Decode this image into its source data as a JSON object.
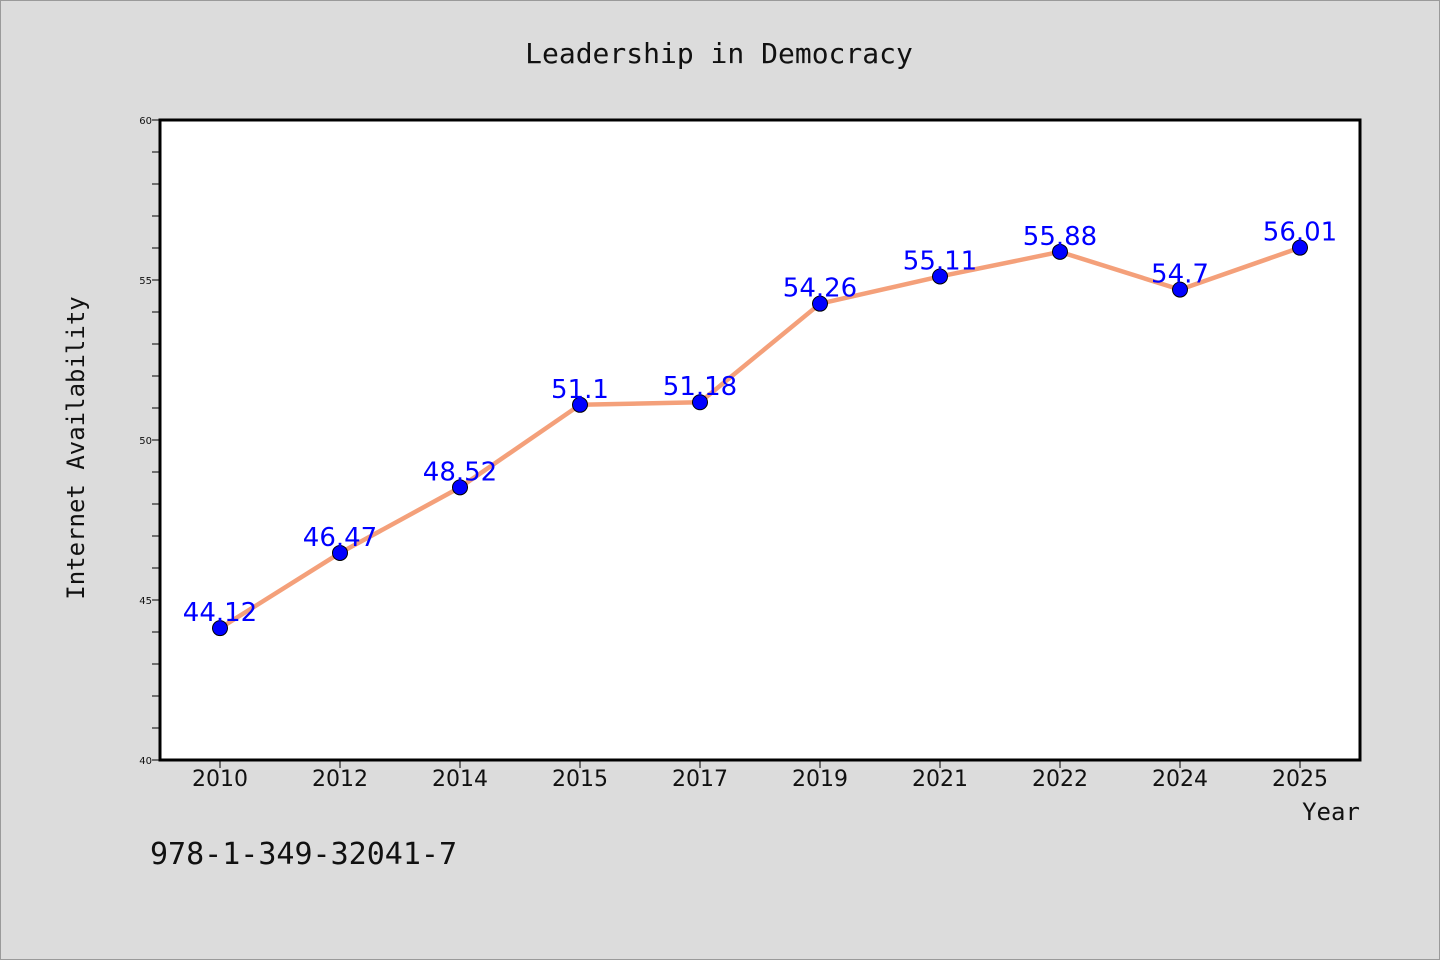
{
  "chart_data": {
    "type": "line",
    "title": "Leadership in Democracy",
    "xlabel": "Year",
    "ylabel": "Internet Availability",
    "categories": [
      "2010",
      "2012",
      "2014",
      "2015",
      "2017",
      "2019",
      "2021",
      "2022",
      "2024",
      "2025"
    ],
    "series": [
      {
        "values": [
          44.12,
          46.47,
          48.52,
          51.1,
          51.18,
          54.26,
          55.11,
          55.88,
          54.7,
          56.01
        ],
        "data_labels": [
          "44.12",
          "46.47",
          "48.52",
          "51.1",
          "51.18",
          "54.26",
          "55.11",
          "55.88",
          "54.7",
          "56.01"
        ],
        "line_color": "#f4a07a",
        "marker_color": "#0000ff"
      }
    ],
    "ylim": [
      40,
      60
    ],
    "yticks": [
      "40",
      "45",
      "50",
      "55",
      "60"
    ],
    "grid": false,
    "legend": "none"
  },
  "annotation": "978-1-349-32041-7",
  "colors": {
    "background": "#dcdcdc",
    "plot_background": "#ffffff",
    "line": "#f4a07a",
    "marker": "#0000ff",
    "data_label": "#0000ff"
  }
}
